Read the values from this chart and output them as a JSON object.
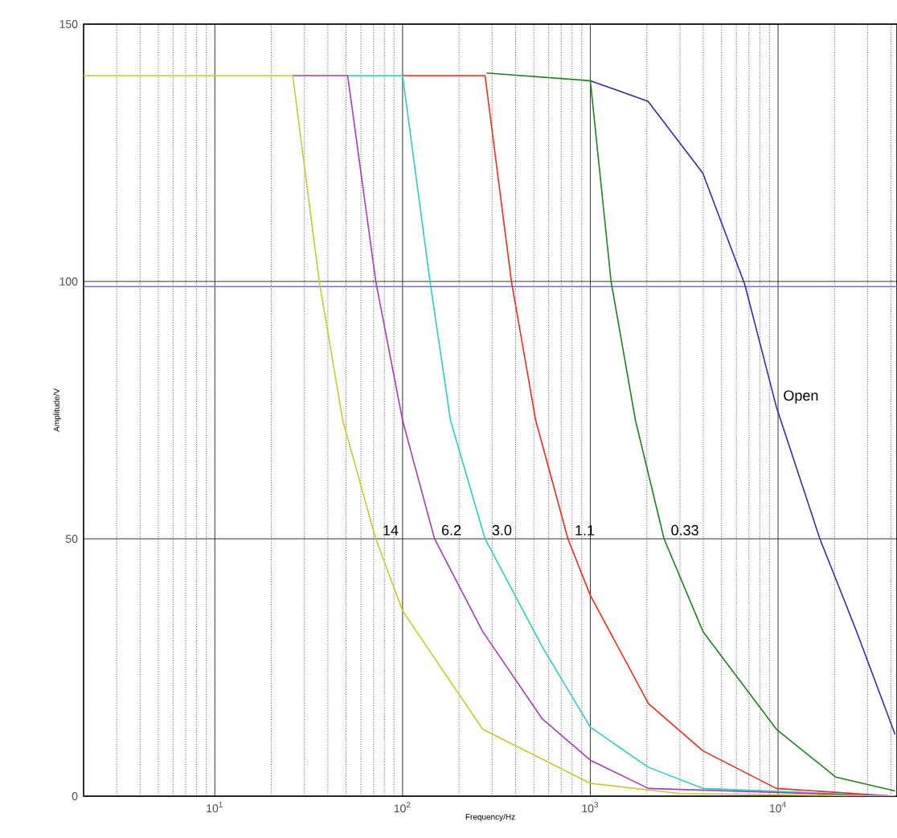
{
  "chart_data": {
    "type": "line",
    "xlabel": "Frequency/Hz",
    "ylabel": "Amplitude/V",
    "log": "x",
    "grid": true,
    "xlim": [
      2,
      43000
    ],
    "ylim": [
      0,
      150
    ],
    "xticks": [
      {
        "value": 10,
        "label": "10$^{1}$"
      },
      {
        "value": 100,
        "label": "10$^{2}$"
      },
      {
        "value": 1000,
        "label": "10$^{3}$"
      },
      {
        "value": 10000,
        "label": "10$^{4}$"
      }
    ],
    "yticks": [
      0,
      50,
      100,
      150
    ],
    "series": [
      {
        "color": "#3030a0",
        "x": [
          1000,
          2030,
          3980,
          6650,
          9800,
          16700,
          26200,
          42000
        ],
        "values": [
          139,
          135,
          121,
          99.4,
          75.6,
          50,
          32,
          12
        ]
      },
      {
        "color": "#208020",
        "x": [
          280,
          1000,
          1290,
          1740,
          2470,
          3980,
          9800,
          20300,
          42000
        ],
        "values": [
          140.5,
          139,
          100,
          73,
          50,
          32,
          13,
          3.7,
          1
        ]
      },
      {
        "color": "#e03020",
        "x": [
          100,
          275,
          380,
          512,
          760,
          1000,
          2040,
          3980,
          9800,
          42000
        ],
        "values": [
          140,
          140,
          100,
          73,
          50,
          39,
          18,
          8.8,
          1.5,
          0
        ]
      },
      {
        "color": "#30c8c8",
        "x": [
          51,
          100,
          140,
          180,
          275,
          555,
          1000,
          2040,
          3980,
          42000
        ],
        "values": [
          140,
          140,
          100,
          73,
          50,
          29,
          13.4,
          5.6,
          1.5,
          0
        ]
      },
      {
        "color": "#a040b0",
        "x": [
          26,
          51,
          72,
          100,
          148,
          267,
          555,
          1000,
          2040,
          42000
        ],
        "values": [
          140,
          140,
          100,
          73,
          50,
          32,
          15,
          7,
          1.5,
          0
        ]
      },
      {
        "color": "#c8c832",
        "x": [
          2,
          26,
          36,
          48,
          72,
          100,
          267,
          1000,
          3000,
          42000
        ],
        "values": [
          140,
          140,
          100,
          73,
          50,
          36,
          13,
          2.5,
          0.5,
          0
        ]
      }
    ],
    "ref_lines": [
      {
        "axis": "y",
        "value": 99,
        "color": "#7070d0"
      }
    ],
    "annotations": [
      {
        "text": "14",
        "x": 72,
        "y": 50
      },
      {
        "text": "6.2",
        "x": 148,
        "y": 50
      },
      {
        "text": "3.0",
        "x": 275,
        "y": 50
      },
      {
        "text": "1.1",
        "x": 760,
        "y": 50
      },
      {
        "text": "0.33",
        "x": 2470,
        "y": 50
      },
      {
        "text": "Open",
        "x": 9800,
        "y": 75.6
      }
    ]
  }
}
